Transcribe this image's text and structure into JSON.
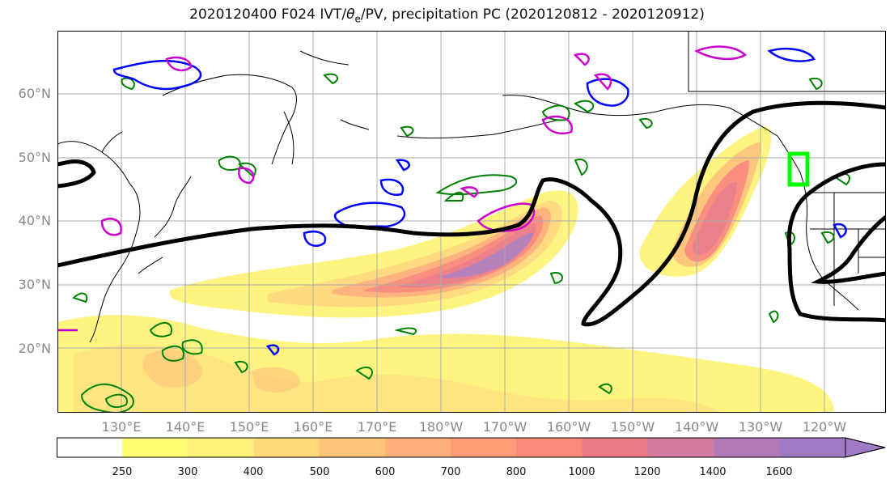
{
  "title": {
    "prefix": "2020120400 F024 IVT/",
    "theta": "θ",
    "theta_sub": "e",
    "suffix": "/PV, precipitation PC (2020120812 - 2020120912)"
  },
  "axes": {
    "lat_labels": [
      "60°N",
      "50°N",
      "40°N",
      "30°N",
      "20°N"
    ],
    "lon_labels": [
      "130°E",
      "140°E",
      "150°E",
      "160°E",
      "170°E",
      "180°W",
      "170°W",
      "160°W",
      "150°W",
      "140°W",
      "130°W",
      "120°W"
    ]
  },
  "colorbar": {
    "levels": [
      "250",
      "300",
      "400",
      "500",
      "600",
      "700",
      "800",
      "1000",
      "1200",
      "1400",
      "1600"
    ],
    "colors": [
      "#ffffff",
      "#ffff73",
      "#fff07a",
      "#ffd97a",
      "#ffc477",
      "#ffb07a",
      "#ff9c77",
      "#fa8a7a",
      "#ea7b85",
      "#d37a9e",
      "#b27bb7",
      "#a07ac4"
    ]
  },
  "colors": {
    "ivt_outer": "#fff47a",
    "ivt_core": "#a07ac4",
    "theta_contour": "#000000",
    "pv_blue": "#0000ff",
    "pv_magenta": "#cc00cc",
    "precip_green": "#008000",
    "target_box": "#00ff00",
    "coast": "#000000",
    "grid": "#aaaaaa"
  }
}
